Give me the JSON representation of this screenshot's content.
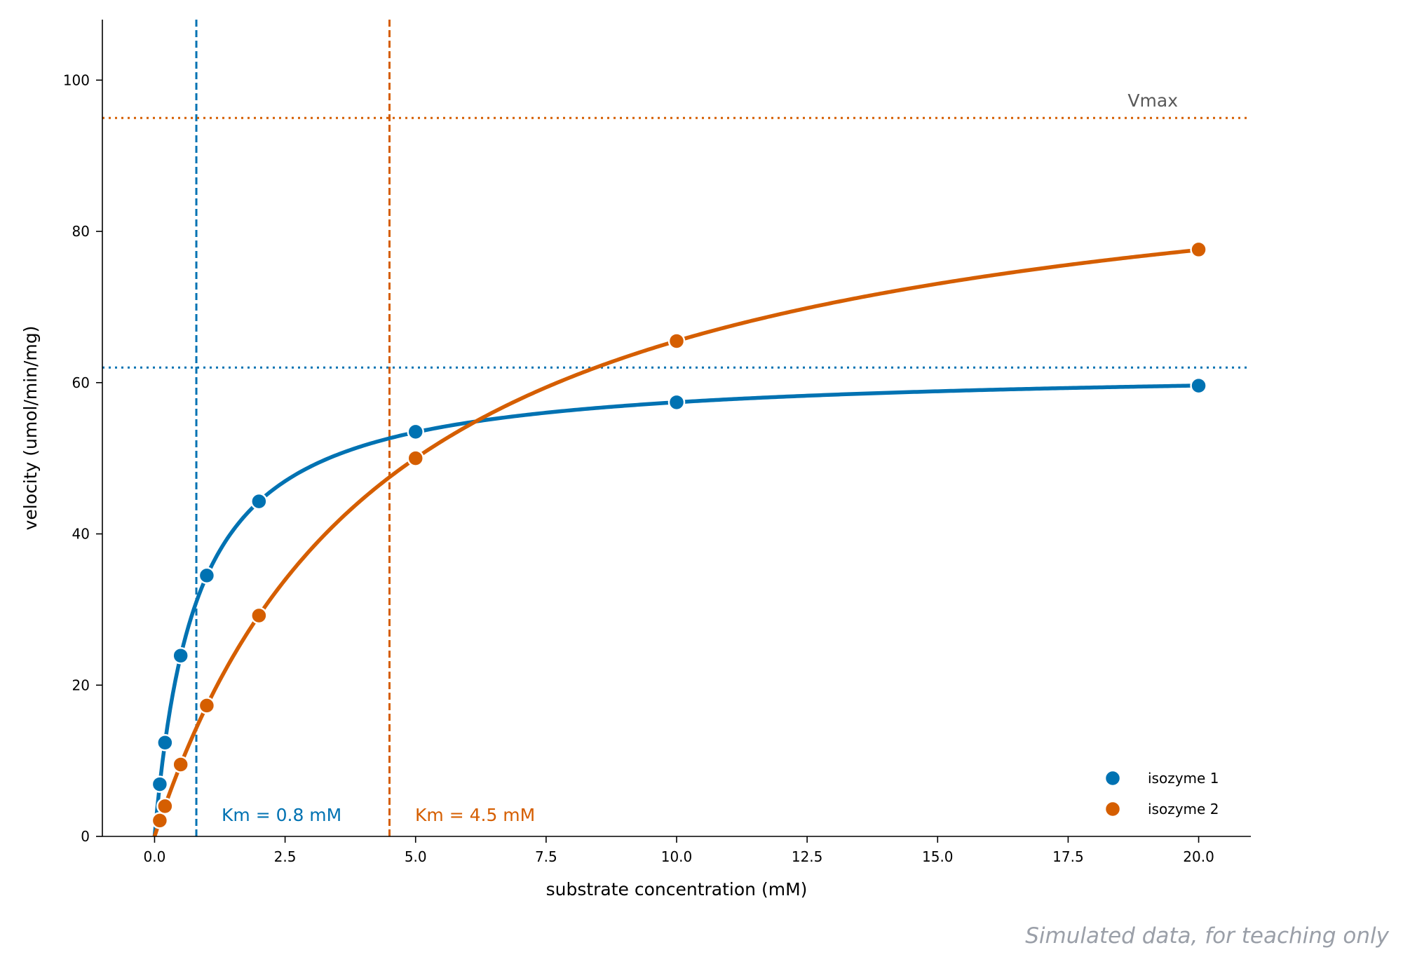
{
  "footnote": "Simulated data, for teaching only",
  "chart_data": {
    "type": "line",
    "title": "",
    "xlabel": "substrate concentration (mM)",
    "ylabel": "velocity (umol/min/mg)",
    "xlim": [
      -1.0,
      21.0
    ],
    "ylim": [
      0,
      108
    ],
    "xticks": [
      0.0,
      2.5,
      5.0,
      7.5,
      10.0,
      12.5,
      15.0,
      17.5,
      20.0
    ],
    "xtick_labels": [
      "0.0",
      "2.5",
      "5.0",
      "7.5",
      "10.0",
      "12.5",
      "15.0",
      "17.5",
      "20.0"
    ],
    "yticks": [
      0,
      20,
      40,
      60,
      80,
      100
    ],
    "ytick_labels": [
      "0",
      "20",
      "40",
      "60",
      "80",
      "100"
    ],
    "grid": false,
    "legend_position": "lower-right",
    "series": [
      {
        "name": "isozyme 1",
        "color": "#0072b2",
        "vmax": 62,
        "km": 0.8,
        "x": [
          0.1,
          0.2,
          0.5,
          1.0,
          2.0,
          5.0,
          10.0,
          20.0
        ],
        "y": [
          6.9,
          12.4,
          23.9,
          34.5,
          44.3,
          53.5,
          57.4,
          59.6
        ],
        "km_label": "Km = 0.8 mM"
      },
      {
        "name": "isozyme 2",
        "color": "#d55e00",
        "vmax": 95,
        "km": 4.5,
        "x": [
          0.1,
          0.2,
          0.5,
          1.0,
          2.0,
          5.0,
          10.0,
          20.0
        ],
        "y": [
          2.1,
          4.0,
          9.5,
          17.3,
          29.2,
          50.0,
          65.5,
          77.6
        ],
        "km_label": "Km = 4.5 mM"
      }
    ],
    "vmax_label": "Vmax"
  }
}
